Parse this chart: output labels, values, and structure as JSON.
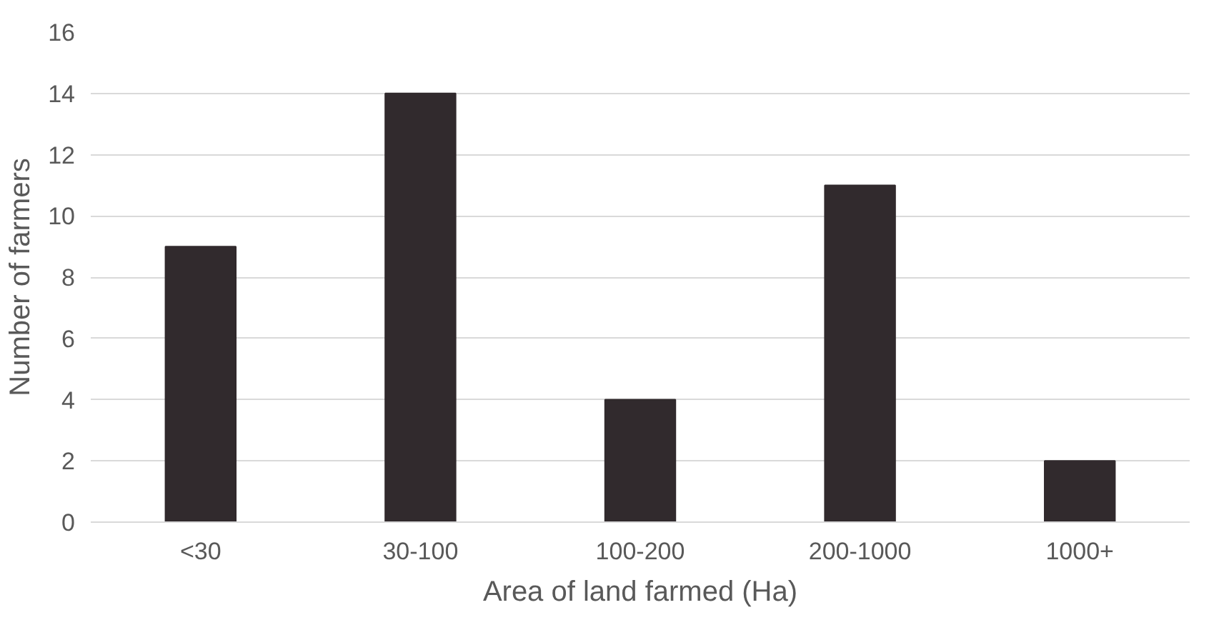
{
  "chart_data": {
    "type": "bar",
    "xlabel": "Area of land farmed (Ha)",
    "ylabel": "Number of farmers",
    "categories": [
      "<30",
      "30-100",
      "100-200",
      "200-1000",
      "1000+"
    ],
    "values": [
      9,
      14,
      4,
      11,
      2
    ],
    "color": "#312a2d",
    "ylim": [
      0,
      16
    ],
    "yticks": [
      0,
      2,
      4,
      6,
      8,
      10,
      12,
      14,
      16
    ],
    "grid": "y"
  }
}
